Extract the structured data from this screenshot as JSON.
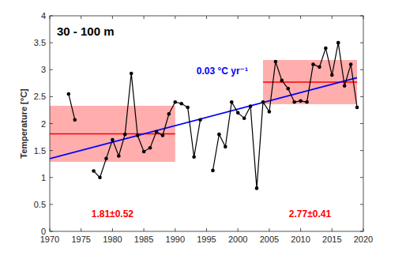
{
  "chart_data": {
    "type": "line",
    "title": "30 - 100 m",
    "y_label": "Temperature [°C]",
    "x": [
      1973,
      1974,
      1975,
      1976,
      1977,
      1978,
      1979,
      1980,
      1981,
      1982,
      1983,
      1984,
      1985,
      1986,
      1987,
      1988,
      1989,
      1990,
      1991,
      1992,
      1993,
      1994,
      1995,
      1996,
      1997,
      1998,
      1999,
      2000,
      2001,
      2002,
      2003,
      2004,
      2005,
      2006,
      2007,
      2008,
      2009,
      2010,
      2011,
      2012,
      2013,
      2014,
      2015,
      2016,
      2017,
      2018,
      2019
    ],
    "series": [
      {
        "color": "#000000",
        "marker": "circle",
        "values": [
          2.55,
          2.07,
          null,
          null,
          1.12,
          1.0,
          1.35,
          1.7,
          1.4,
          1.8,
          2.93,
          1.78,
          1.48,
          1.55,
          1.85,
          1.78,
          2.18,
          2.4,
          2.37,
          2.3,
          1.38,
          2.07,
          null,
          1.13,
          1.8,
          1.57,
          2.4,
          2.2,
          2.1,
          2.32,
          0.8,
          2.4,
          2.22,
          3.15,
          2.8,
          2.65,
          2.4,
          2.42,
          2.4,
          3.1,
          3.05,
          3.4,
          2.9,
          3.5,
          2.7,
          3.1,
          2.3
        ]
      }
    ],
    "trend": {
      "x": [
        1970,
        2019
      ],
      "values": [
        1.35,
        2.85
      ],
      "color": "#0000ff",
      "label": "0.03 °C yr⁻¹"
    },
    "periods": [
      {
        "x": [
          1970,
          1990
        ],
        "mean": 1.81,
        "std": 0.52,
        "label": "1.81±0.52"
      },
      {
        "x": [
          2004,
          2019
        ],
        "mean": 2.77,
        "std": 0.41,
        "label": "2.77±0.41"
      }
    ],
    "period_color": "#ff0000",
    "xlim": [
      1970,
      2020
    ],
    "ylim": [
      0,
      4
    ],
    "xticks": [
      1970,
      1975,
      1980,
      1985,
      1990,
      1995,
      2000,
      2005,
      2010,
      2015,
      2020
    ],
    "yticks": [
      0,
      0.5,
      1,
      1.5,
      2,
      2.5,
      3,
      3.5,
      4
    ],
    "grid": false
  }
}
